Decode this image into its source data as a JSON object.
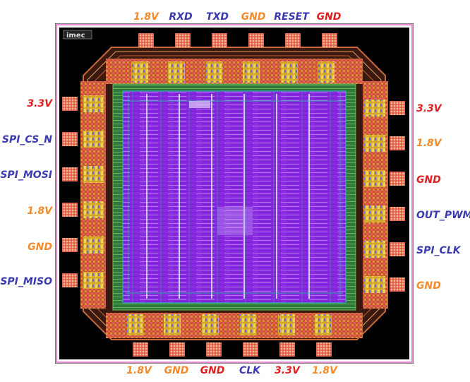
{
  "logo_text": "imec",
  "colors": {
    "power": "#e02020",
    "ground": "#f58a2a",
    "signal": "#3a3ab0"
  },
  "pins": {
    "top": [
      {
        "label": "1.8V",
        "kind": "ground"
      },
      {
        "label": "RXD",
        "kind": "signal"
      },
      {
        "label": "TXD",
        "kind": "signal"
      },
      {
        "label": "GND",
        "kind": "ground"
      },
      {
        "label": "RESET",
        "kind": "signal"
      },
      {
        "label": "GND",
        "kind": "power"
      }
    ],
    "bottom": [
      {
        "label": "1.8V",
        "kind": "ground"
      },
      {
        "label": "GND",
        "kind": "ground"
      },
      {
        "label": "GND",
        "kind": "power"
      },
      {
        "label": "CLK",
        "kind": "signal"
      },
      {
        "label": "3.3V",
        "kind": "power"
      },
      {
        "label": "1.8V",
        "kind": "ground"
      }
    ],
    "left": [
      {
        "label": "3.3V",
        "kind": "power"
      },
      {
        "label": "SPI_CS_N",
        "kind": "signal"
      },
      {
        "label": "SPI_MOSI",
        "kind": "signal"
      },
      {
        "label": "1.8V",
        "kind": "ground"
      },
      {
        "label": "GND",
        "kind": "ground"
      },
      {
        "label": "SPI_MISO",
        "kind": "signal"
      }
    ],
    "right": [
      {
        "label": "3.3V",
        "kind": "power"
      },
      {
        "label": "1.8V",
        "kind": "ground"
      },
      {
        "label": "GND",
        "kind": "power"
      },
      {
        "label": "OUT_PWM",
        "kind": "signal"
      },
      {
        "label": "SPI_CLK",
        "kind": "signal"
      },
      {
        "label": "GND",
        "kind": "ground"
      }
    ]
  }
}
